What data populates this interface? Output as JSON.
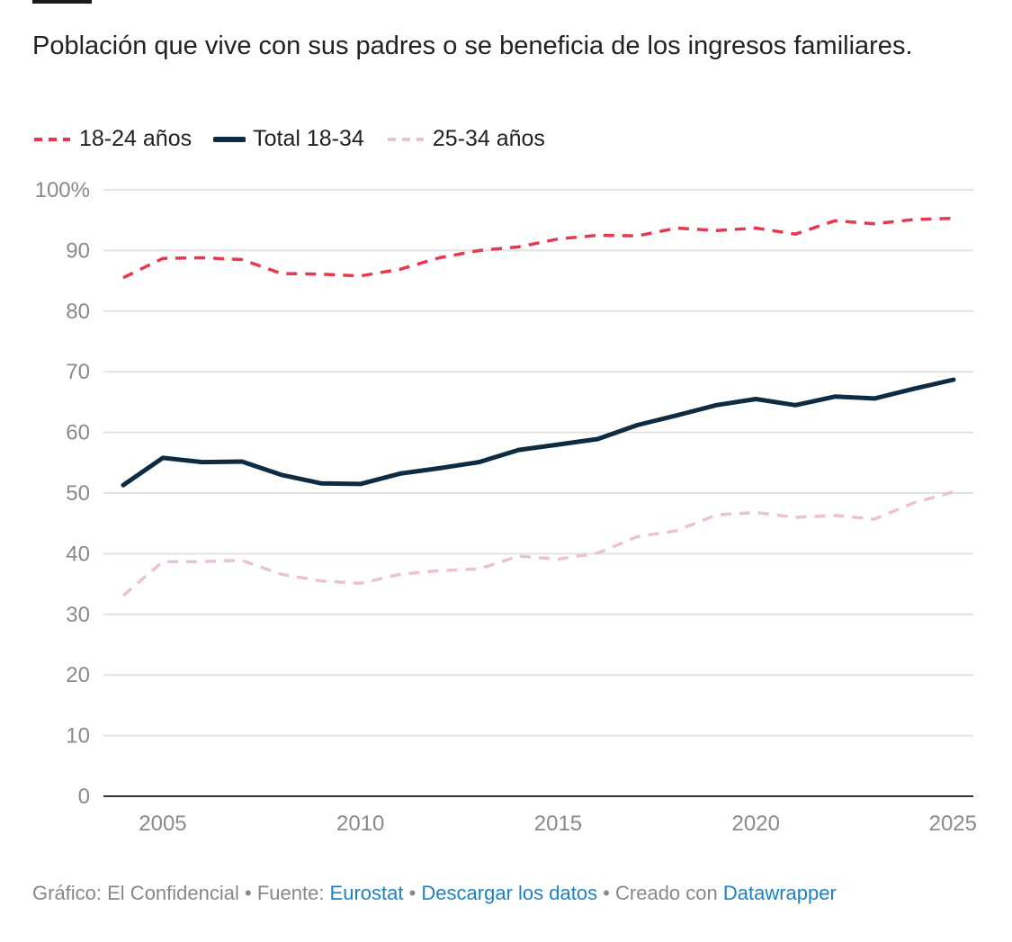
{
  "header": {
    "subtitle": "Población que vive con sus padres o se beneficia de los ingresos familiares."
  },
  "legend": [
    {
      "label": "18-24 años",
      "color": "#e8384f",
      "dash": true
    },
    {
      "label": "Total 18-34",
      "color": "#0d2c44",
      "dash": false
    },
    {
      "label": "25-34 años",
      "color": "#ebc4cb",
      "dash": true
    }
  ],
  "footer": {
    "credit": "Gráfico: El Confidencial",
    "sep1": " • ",
    "source_label": "Fuente: ",
    "source_link": "Eurostat",
    "sep2": " • ",
    "download_link": "Descargar los datos",
    "sep3": " • ",
    "created_label": "Creado con ",
    "created_link": "Datawrapper"
  },
  "chart_data": {
    "type": "line",
    "x": [
      2004,
      2005,
      2006,
      2007,
      2008,
      2009,
      2010,
      2011,
      2012,
      2013,
      2014,
      2015,
      2016,
      2017,
      2018,
      2019,
      2020,
      2021,
      2022,
      2023,
      2024,
      2025
    ],
    "series": [
      {
        "name": "18-24 años",
        "color": "#e8384f",
        "dashed": true,
        "width": 3.5,
        "values": [
          85.5,
          88.7,
          88.8,
          88.5,
          86.2,
          86.1,
          85.8,
          86.9,
          88.8,
          90.0,
          90.6,
          91.9,
          92.5,
          92.4,
          93.7,
          93.3,
          93.7,
          92.7,
          94.9,
          94.4,
          95.1,
          95.3
        ]
      },
      {
        "name": "Total 18-34",
        "color": "#0d2c44",
        "dashed": false,
        "width": 5,
        "values": [
          51.3,
          55.8,
          55.1,
          55.2,
          53.0,
          51.6,
          51.5,
          53.2,
          54.1,
          55.1,
          57.1,
          58.0,
          58.9,
          61.2,
          62.8,
          64.5,
          65.5,
          64.5,
          65.9,
          65.6,
          67.2,
          68.7
        ]
      },
      {
        "name": "25-34 años",
        "color": "#ebc4cb",
        "dashed": true,
        "width": 3.5,
        "values": [
          33.1,
          38.7,
          38.7,
          38.9,
          36.6,
          35.5,
          35.1,
          36.6,
          37.2,
          37.5,
          39.6,
          39.1,
          40.1,
          42.8,
          43.8,
          46.4,
          46.8,
          46.0,
          46.3,
          45.7,
          48.4,
          50.2
        ]
      }
    ],
    "yticks": [
      0,
      10,
      20,
      30,
      40,
      50,
      60,
      70,
      80,
      90,
      100
    ],
    "ytick_labels": [
      "0",
      "10",
      "20",
      "30",
      "40",
      "50",
      "60",
      "70",
      "80",
      "90",
      "100%"
    ],
    "xticks": [
      2005,
      2010,
      2015,
      2020,
      2025
    ],
    "xtick_labels": [
      "2005",
      "2010",
      "2015",
      "2020",
      "2025"
    ],
    "xlim": [
      2004,
      2025
    ],
    "ylim": [
      0,
      100
    ],
    "grid": true,
    "legend_position": "top-left"
  }
}
